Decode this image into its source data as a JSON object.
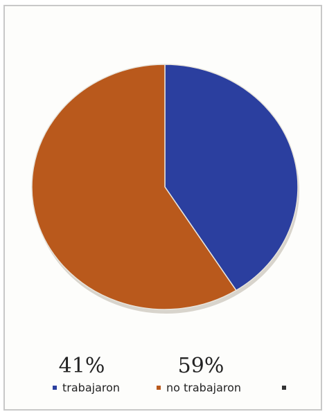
{
  "chart_data": {
    "type": "pie",
    "categories": [
      "trabajaron",
      "no trabajaron"
    ],
    "values": [
      41,
      59
    ],
    "value_labels": [
      "41%",
      "59%"
    ],
    "colors": [
      "#2b3f9f",
      "#b9591c"
    ]
  }
}
